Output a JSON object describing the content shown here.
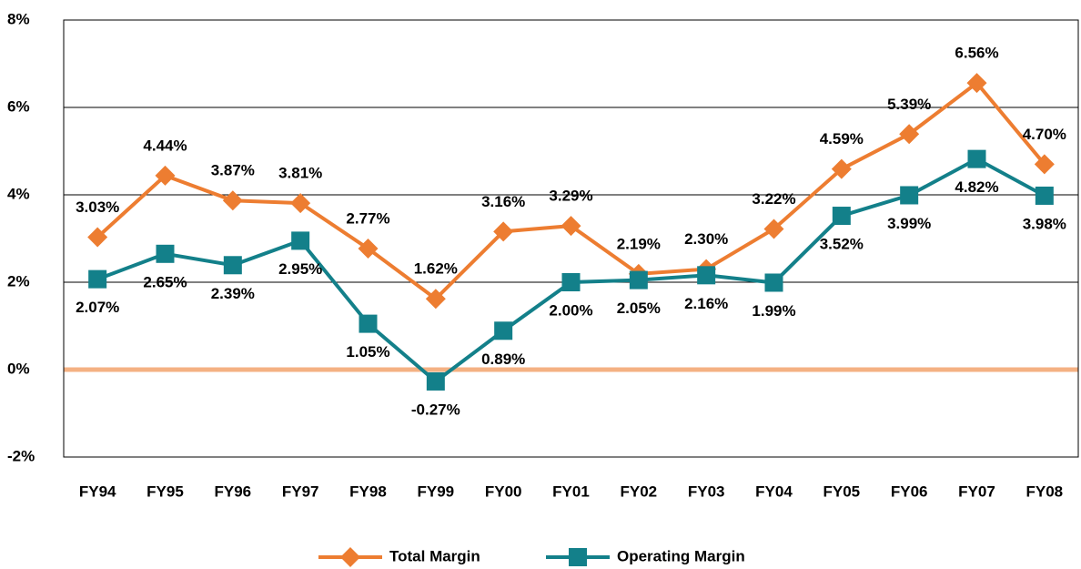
{
  "chart_data": {
    "type": "line",
    "categories": [
      "FY94",
      "FY95",
      "FY96",
      "FY97",
      "FY98",
      "FY99",
      "FY00",
      "FY01",
      "FY02",
      "FY03",
      "FY04",
      "FY05",
      "FY06",
      "FY07",
      "FY08"
    ],
    "series": [
      {
        "name": "Total Margin",
        "color": "#ed7d31",
        "marker": "diamond",
        "values": [
          3.03,
          4.44,
          3.87,
          3.81,
          2.77,
          1.62,
          3.16,
          3.29,
          2.19,
          2.3,
          3.22,
          4.59,
          5.39,
          6.56,
          4.7
        ],
        "value_labels": [
          "3.03%",
          "4.44%",
          "3.87%",
          "3.81%",
          "2.77%",
          "1.62%",
          "3.16%",
          "3.29%",
          "2.19%",
          "2.30%",
          "3.22%",
          "4.59%",
          "5.39%",
          "6.56%",
          "4.70%"
        ]
      },
      {
        "name": "Operating Margin",
        "color": "#13808a",
        "marker": "square",
        "values": [
          2.07,
          2.65,
          2.39,
          2.95,
          1.05,
          -0.27,
          0.89,
          2.0,
          2.05,
          2.16,
          1.99,
          3.52,
          3.99,
          4.82,
          3.98
        ],
        "value_labels": [
          "2.07%",
          "2.65%",
          "2.39%",
          "2.95%",
          "1.05%",
          "-0.27%",
          "0.89%",
          "2.00%",
          "2.05%",
          "2.16%",
          "1.99%",
          "3.52%",
          "3.99%",
          "4.82%",
          "3.98%"
        ]
      }
    ],
    "ylim": [
      -2,
      8
    ],
    "yticks": [
      {
        "value": -2,
        "label": "-2%"
      },
      {
        "value": 0,
        "label": "0%"
      },
      {
        "value": 2,
        "label": "2%"
      },
      {
        "value": 4,
        "label": "4%"
      },
      {
        "value": 6,
        "label": "6%"
      },
      {
        "value": 8,
        "label": "8%"
      }
    ],
    "grid": true,
    "legend": "bottom"
  }
}
